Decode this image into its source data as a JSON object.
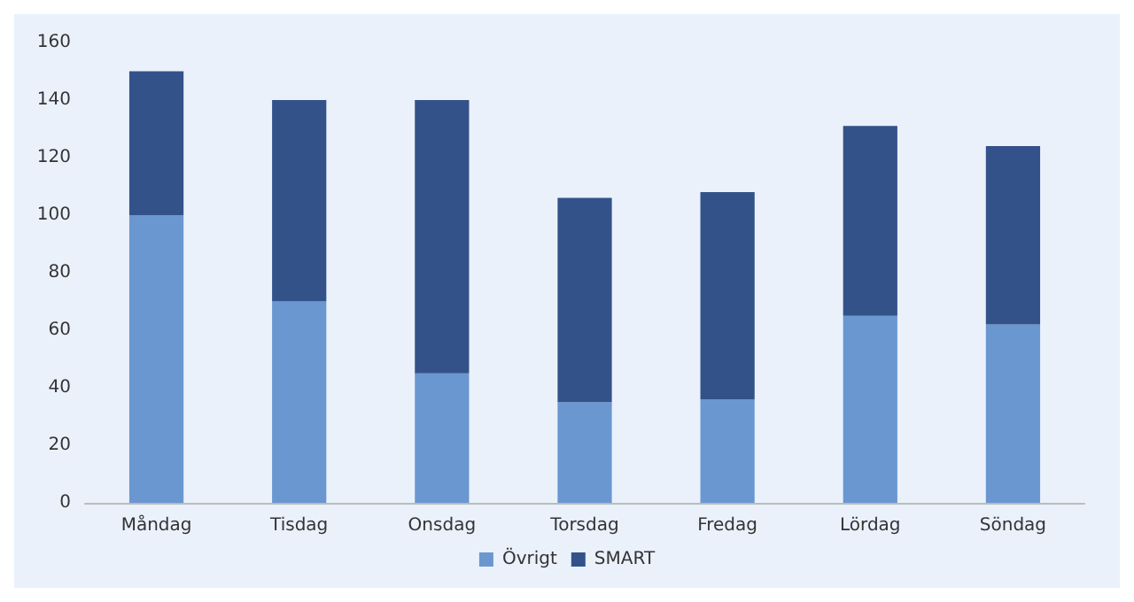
{
  "chart_data": {
    "type": "bar",
    "stacked": true,
    "categories": [
      "Måndag",
      "Tisdag",
      "Onsdag",
      "Torsdag",
      "Fredag",
      "Lördag",
      "Söndag"
    ],
    "series": [
      {
        "name": "Övrigt",
        "color": "#6a97d0",
        "values": [
          100,
          70,
          45,
          35,
          36,
          65,
          62
        ]
      },
      {
        "name": "SMART",
        "color": "#34528a",
        "values": [
          50,
          70,
          95,
          71,
          72,
          66,
          62
        ]
      }
    ],
    "ylim": [
      0,
      160
    ],
    "yticks": [
      0,
      20,
      40,
      60,
      80,
      100,
      120,
      140,
      160
    ],
    "grid": false,
    "legend": "bottom"
  }
}
